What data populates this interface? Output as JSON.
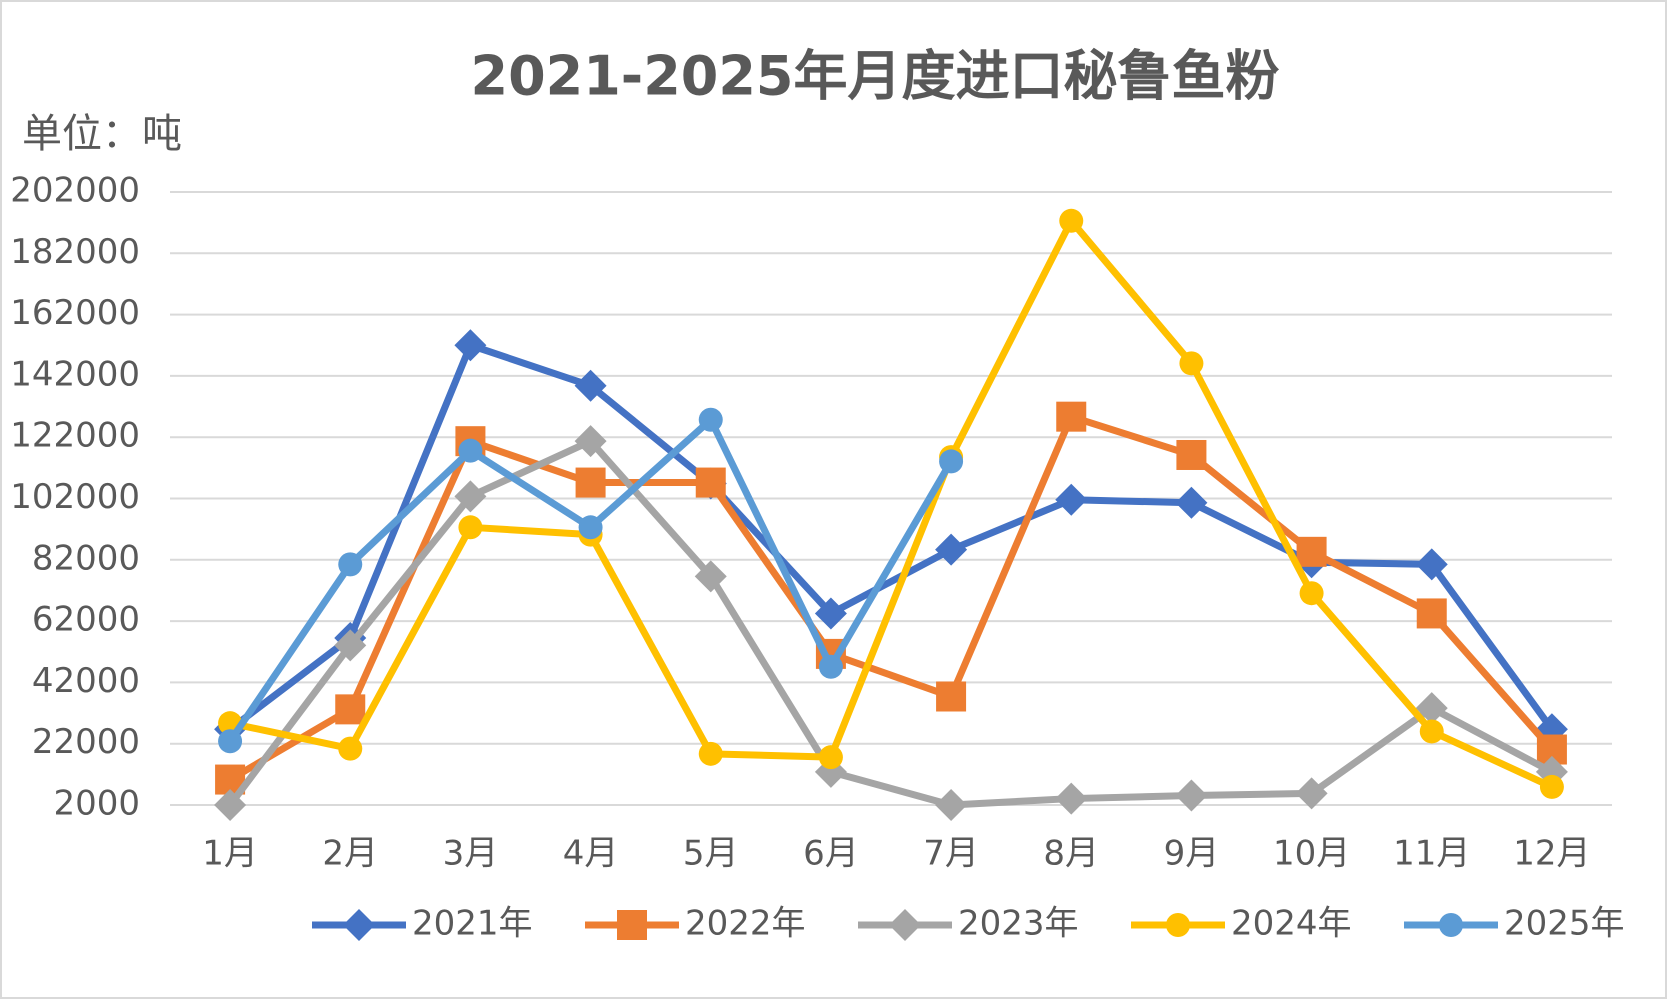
{
  "chart_data": {
    "type": "line",
    "title": "2021-2025年月度进口秘鲁鱼粉",
    "y_axis_label": "单位：吨",
    "categories": [
      "1月",
      "2月",
      "3月",
      "4月",
      "5月",
      "6月",
      "7月",
      "8月",
      "9月",
      "10月",
      "11月",
      "12月"
    ],
    "ylim": [
      2000,
      202000
    ],
    "yticks": [
      2000,
      22000,
      42000,
      62000,
      82000,
      102000,
      122000,
      142000,
      162000,
      182000,
      202000
    ],
    "grid": true,
    "legend": "bottom",
    "series": [
      {
        "name": "2021年",
        "color": "#4472c4",
        "marker": "diamond",
        "values": [
          26700,
          56500,
          152000,
          138800,
          106900,
          64500,
          85300,
          101600,
          100600,
          81200,
          80500,
          26700
        ]
      },
      {
        "name": "2022年",
        "color": "#ed7d31",
        "marker": "square",
        "values": [
          10300,
          33200,
          120700,
          107200,
          107200,
          51300,
          37400,
          128700,
          116200,
          84600,
          64500,
          20100
        ]
      },
      {
        "name": "2023年",
        "color": "#a5a5a5",
        "marker": "diamond",
        "values": [
          2000,
          54100,
          102700,
          120700,
          76600,
          12800,
          2000,
          4100,
          5100,
          5800,
          33600,
          12800
        ]
      },
      {
        "name": "2024年",
        "color": "#ffc000",
        "marker": "circle",
        "values": [
          28700,
          20400,
          92600,
          90200,
          18700,
          17600,
          115500,
          192600,
          146100,
          71100,
          26000,
          7900
        ]
      },
      {
        "name": "2025年",
        "color": "#5b9bd5",
        "marker": "circle",
        "values": [
          22800,
          80500,
          117600,
          92600,
          127700,
          47100,
          114100,
          null,
          null,
          null,
          null,
          null
        ]
      }
    ]
  }
}
